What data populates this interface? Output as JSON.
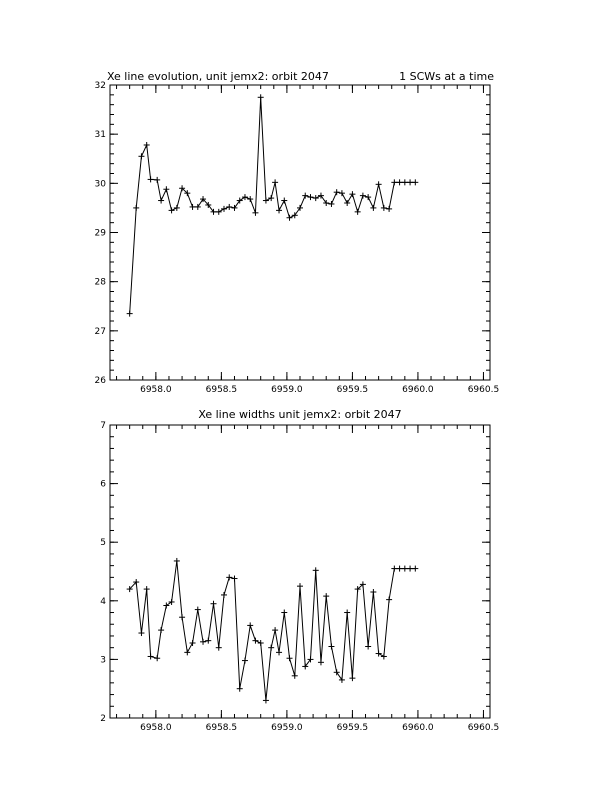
{
  "chart_data": [
    {
      "type": "line",
      "title": "Xe line evolution, unit jemx2: orbit 2047",
      "title_right": "1 SCWs at a time",
      "xlabel": "",
      "ylabel": "",
      "xlim": [
        6957.65,
        6960.55
      ],
      "ylim": [
        26,
        32
      ],
      "xticks": [
        6958.0,
        6958.5,
        6959.0,
        6959.5,
        6960.0,
        6960.5
      ],
      "xtick_labels": [
        "6958.0",
        "6958.5",
        "6959.0",
        "6959.5",
        "6960.0",
        "6960.5"
      ],
      "yticks": [
        26,
        27,
        28,
        29,
        30,
        31,
        32
      ],
      "ytick_labels": [
        "26",
        "27",
        "28",
        "29",
        "30",
        "31",
        "32"
      ],
      "marker": "plus",
      "grid": false,
      "x": [
        6957.8,
        6957.85,
        6957.89,
        6957.93,
        6957.96,
        6958.01,
        6958.04,
        6958.08,
        6958.12,
        6958.16,
        6958.2,
        6958.24,
        6958.28,
        6958.32,
        6958.36,
        6958.4,
        6958.44,
        6958.48,
        6958.52,
        6958.56,
        6958.6,
        6958.64,
        6958.68,
        6958.72,
        6958.76,
        6958.8,
        6958.84,
        6958.88,
        6958.91,
        6958.94,
        6958.98,
        6959.02,
        6959.06,
        6959.1,
        6959.14,
        6959.18,
        6959.22,
        6959.26,
        6959.3,
        6959.34,
        6959.38,
        6959.42,
        6959.46,
        6959.5,
        6959.54,
        6959.58,
        6959.62,
        6959.66,
        6959.7,
        6959.74,
        6959.78,
        6959.82,
        6959.86,
        6959.9,
        6959.94,
        6959.98
      ],
      "y": [
        27.35,
        29.5,
        30.55,
        30.78,
        30.08,
        30.07,
        29.65,
        29.88,
        29.45,
        29.5,
        29.9,
        29.8,
        29.52,
        29.52,
        29.68,
        29.56,
        29.42,
        29.42,
        29.48,
        29.52,
        29.5,
        29.65,
        29.72,
        29.68,
        29.4,
        31.75,
        29.65,
        29.7,
        30.02,
        29.45,
        29.65,
        29.3,
        29.35,
        29.5,
        29.75,
        29.72,
        29.7,
        29.75,
        29.6,
        29.58,
        29.82,
        29.8,
        29.6,
        29.78,
        29.42,
        29.75,
        29.72,
        29.5,
        29.98,
        29.5,
        29.48,
        30.02,
        30.02,
        30.02,
        30.02,
        30.02
      ]
    },
    {
      "type": "line",
      "title": "Xe line widths unit jemx2: orbit 2047",
      "xlabel": "",
      "ylabel": "",
      "xlim": [
        6957.65,
        6960.55
      ],
      "ylim": [
        2,
        7
      ],
      "xticks": [
        6958.0,
        6958.5,
        6959.0,
        6959.5,
        6960.0,
        6960.5
      ],
      "xtick_labels": [
        "6958.0",
        "6958.5",
        "6959.0",
        "6959.5",
        "6960.0",
        "6960.5"
      ],
      "yticks": [
        2,
        3,
        4,
        5,
        6,
        7
      ],
      "ytick_labels": [
        "2",
        "3",
        "4",
        "5",
        "6",
        "7"
      ],
      "marker": "plus",
      "grid": false,
      "x": [
        6957.8,
        6957.85,
        6957.89,
        6957.93,
        6957.96,
        6958.01,
        6958.04,
        6958.08,
        6958.12,
        6958.16,
        6958.2,
        6958.24,
        6958.28,
        6958.32,
        6958.36,
        6958.4,
        6958.44,
        6958.48,
        6958.52,
        6958.56,
        6958.6,
        6958.64,
        6958.68,
        6958.72,
        6958.76,
        6958.8,
        6958.84,
        6958.88,
        6958.91,
        6958.94,
        6958.98,
        6959.02,
        6959.06,
        6959.1,
        6959.14,
        6959.18,
        6959.22,
        6959.26,
        6959.3,
        6959.34,
        6959.38,
        6959.42,
        6959.46,
        6959.5,
        6959.54,
        6959.58,
        6959.62,
        6959.66,
        6959.7,
        6959.74,
        6959.78,
        6959.82,
        6959.86,
        6959.9,
        6959.94,
        6959.98
      ],
      "y": [
        4.2,
        4.32,
        3.45,
        4.2,
        3.05,
        3.02,
        3.5,
        3.92,
        3.98,
        4.68,
        3.72,
        3.12,
        3.28,
        3.85,
        3.3,
        3.32,
        3.95,
        3.2,
        4.1,
        4.4,
        4.38,
        2.5,
        2.98,
        3.58,
        3.32,
        3.28,
        2.3,
        3.2,
        3.5,
        3.12,
        3.8,
        3.02,
        2.72,
        4.25,
        2.88,
        3.0,
        4.52,
        2.95,
        4.08,
        3.22,
        2.78,
        2.65,
        3.8,
        2.68,
        4.2,
        4.28,
        3.22,
        4.15,
        3.1,
        3.05,
        4.02,
        4.55,
        4.55,
        4.55,
        4.55,
        4.55
      ]
    }
  ]
}
